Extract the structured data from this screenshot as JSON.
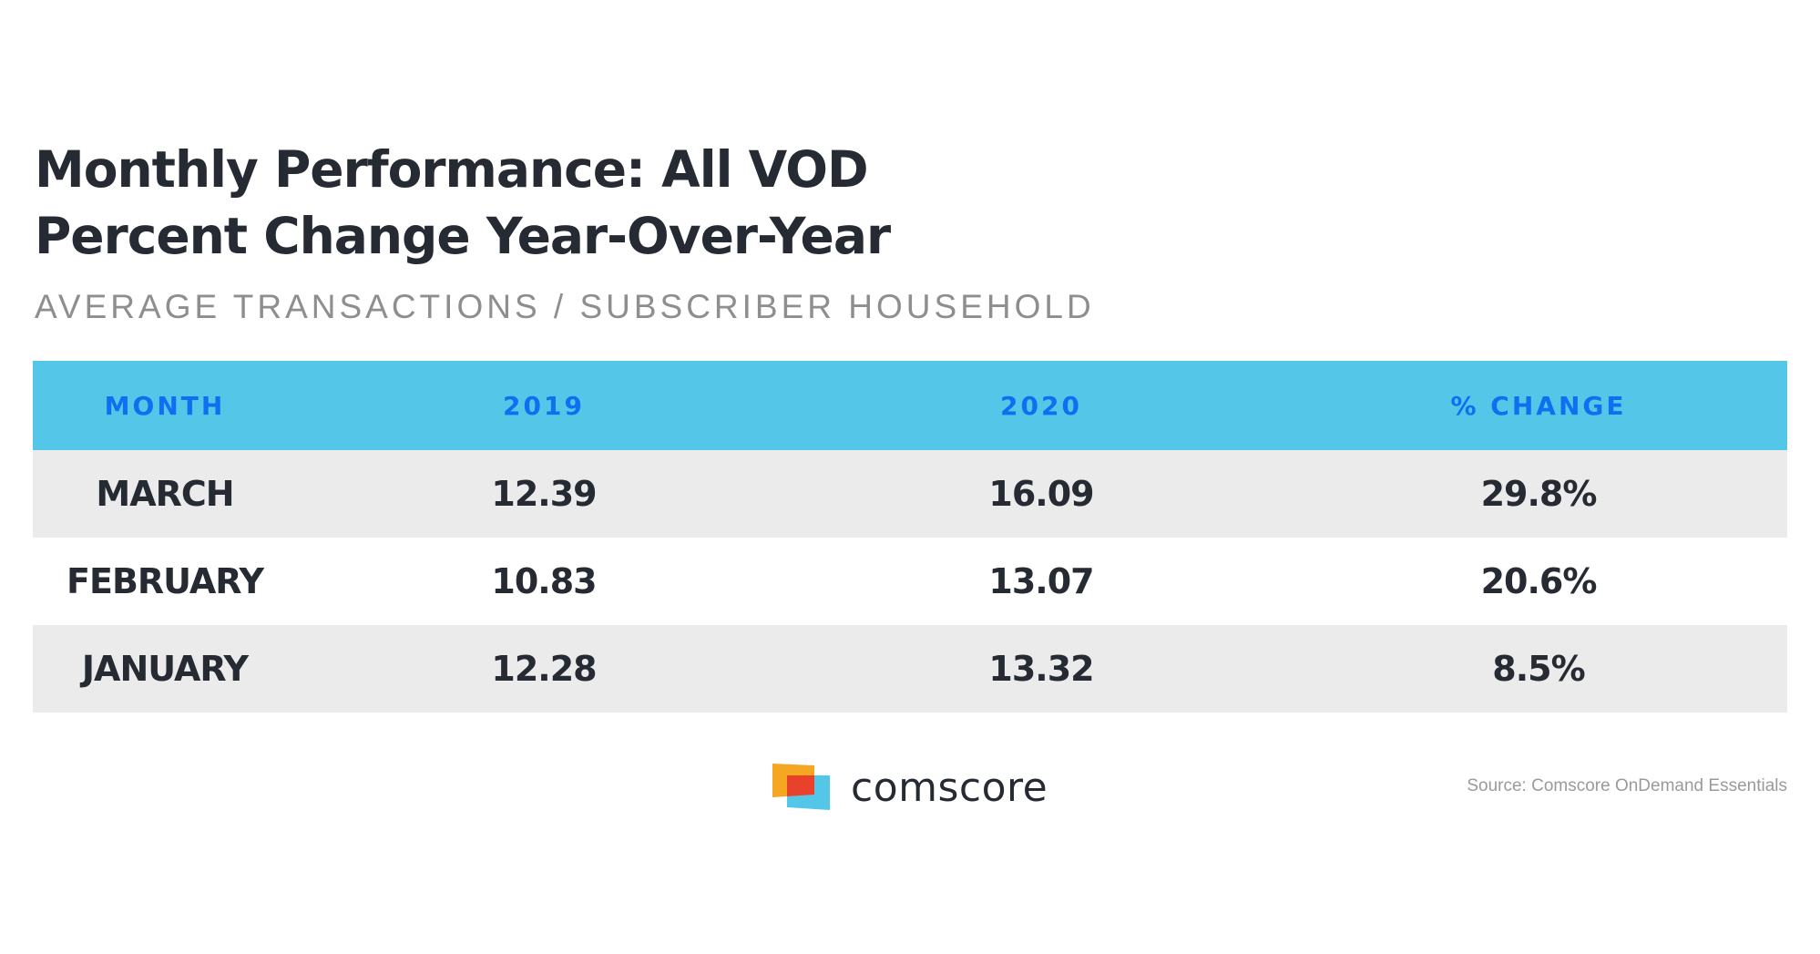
{
  "title_line1": "Monthly Performance: All VOD",
  "title_line2": "Percent Change Year-Over-Year",
  "subtitle": "AVERAGE TRANSACTIONS / SUBSCRIBER HOUSEHOLD",
  "table": {
    "headers": [
      "MONTH",
      "2019",
      "2020",
      "% CHANGE"
    ],
    "rows": [
      [
        "MARCH",
        "12.39",
        "16.09",
        "29.8%"
      ],
      [
        "FEBRUARY",
        "10.83",
        "13.07",
        "20.6%"
      ],
      [
        "JANUARY",
        "12.28",
        "13.32",
        "8.5%"
      ]
    ]
  },
  "logo": {
    "text": "comscore",
    "colors": [
      "#f5a623",
      "#e8412c",
      "#54c6e8"
    ]
  },
  "source": "Source: Comscore OnDemand Essentials",
  "colors": {
    "header_bg": "#54c6e8",
    "header_text": "#0f6ff0",
    "alt_row": "#ebebeb",
    "text": "#262a33"
  }
}
